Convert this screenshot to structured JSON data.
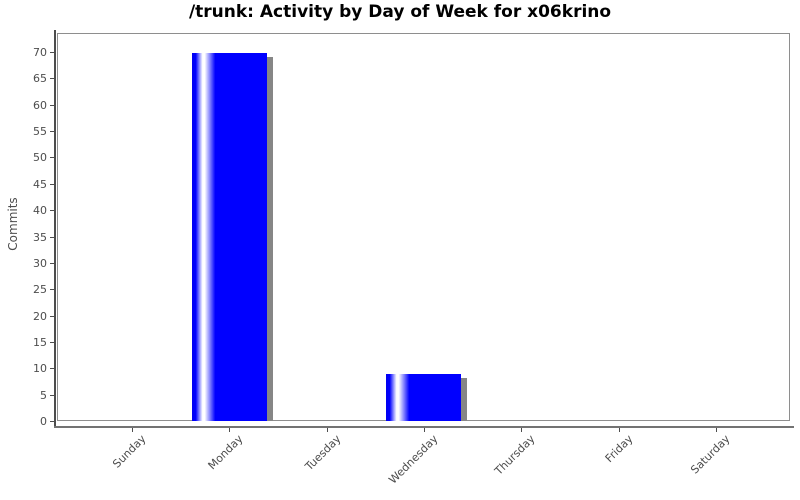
{
  "chart_data": {
    "type": "bar",
    "title": "/trunk: Activity by Day of Week for x06krino",
    "xlabel": "",
    "ylabel": "Commits",
    "categories": [
      "Sunday",
      "Monday",
      "Tuesday",
      "Wednesday",
      "Thursday",
      "Friday",
      "Saturday"
    ],
    "values": [
      0,
      70,
      0,
      9,
      0,
      0,
      0
    ],
    "yticks": [
      0,
      5,
      10,
      15,
      20,
      25,
      30,
      35,
      40,
      45,
      50,
      55,
      60,
      65,
      70
    ],
    "ylim": [
      0,
      73.6
    ],
    "grid": false,
    "legend_position": "none",
    "colors": {
      "bar": "#0000ff",
      "bar_highlight": "#ffffff",
      "bar_shadow": "#868686",
      "y_axis_line": "#4d4d4d",
      "x_axis_line": "#737373",
      "plot_border": "#8e8e8e",
      "tick_label": "#4d4d4d",
      "title": "#000000",
      "background": "#ffffff"
    }
  }
}
